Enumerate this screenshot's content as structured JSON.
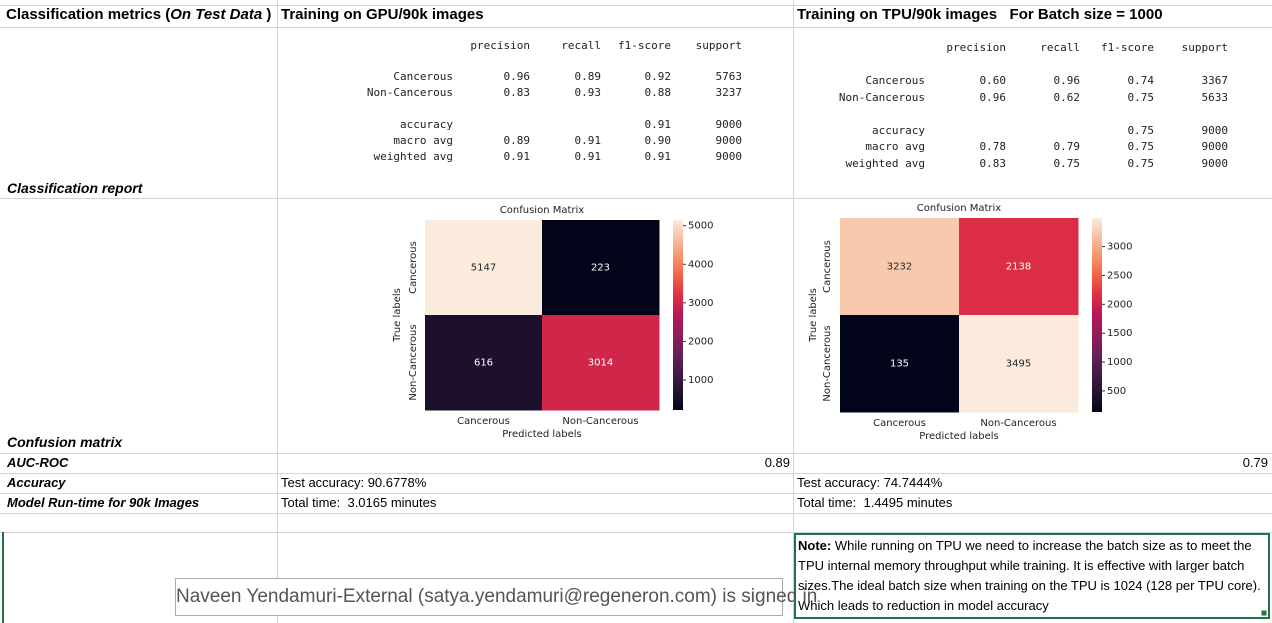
{
  "header": {
    "metrics_prefix": "Classification metrics (",
    "metrics_italic": "On Test Data",
    "metrics_suffix": " )",
    "gpu": "Training on GPU/90k images",
    "tpu": "Training on TPU/90k images   For Batch size = 1000"
  },
  "row_labels": {
    "report": "Classification report",
    "confusion": "Confusion matrix",
    "auc": "AUC-ROC",
    "accuracy": "Accuracy",
    "runtime": "Model Run-time for 90k Images"
  },
  "reports": [
    {
      "headers": [
        "precision",
        "recall",
        "f1-score",
        "support"
      ],
      "rows": [
        {
          "label": "Cancerous",
          "cells": [
            "0.96",
            "0.89",
            "0.92",
            "5763"
          ]
        },
        {
          "label": "Non-Cancerous",
          "cells": [
            "0.83",
            "0.93",
            "0.88",
            "3237"
          ]
        },
        {
          "label": "accuracy",
          "cells": [
            null,
            null,
            "0.91",
            "9000"
          ]
        },
        {
          "label": "macro avg",
          "cells": [
            "0.89",
            "0.91",
            "0.90",
            "9000"
          ]
        },
        {
          "label": "weighted avg",
          "cells": [
            "0.91",
            "0.91",
            "0.91",
            "9000"
          ]
        }
      ]
    },
    {
      "headers": [
        "precision",
        "recall",
        "f1-score",
        "support"
      ],
      "rows": [
        {
          "label": "Cancerous",
          "cells": [
            "0.60",
            "0.96",
            "0.74",
            "3367"
          ]
        },
        {
          "label": "Non-Cancerous",
          "cells": [
            "0.96",
            "0.62",
            "0.75",
            "5633"
          ]
        },
        {
          "label": "accuracy",
          "cells": [
            null,
            null,
            "0.75",
            "9000"
          ]
        },
        {
          "label": "macro avg",
          "cells": [
            "0.78",
            "0.79",
            "0.75",
            "9000"
          ]
        },
        {
          "label": "weighted avg",
          "cells": [
            "0.83",
            "0.75",
            "0.75",
            "9000"
          ]
        }
      ]
    }
  ],
  "confusion_matrices": [
    {
      "title": "Confusion Matrix",
      "xlabel": "Predicted labels",
      "ylabel": "True labels",
      "categories": [
        "Cancerous",
        "Non-Cancerous"
      ],
      "values": [
        [
          5147,
          223
        ],
        [
          616,
          3014
        ]
      ],
      "clim": [
        223,
        5147
      ],
      "colorbar_ticks": [
        1000,
        2000,
        3000,
        4000,
        5000
      ]
    },
    {
      "title": "Confusion Matrix",
      "xlabel": "Predicted labels",
      "ylabel": "True labels",
      "categories": [
        "Cancerous",
        "Non-Cancerous"
      ],
      "values": [
        [
          3232,
          2138
        ],
        [
          135,
          3495
        ]
      ],
      "clim": [
        135,
        3495
      ],
      "colorbar_ticks": [
        500,
        1000,
        1500,
        2000,
        2500,
        3000
      ]
    }
  ],
  "auc": [
    0.89,
    0.79
  ],
  "accuracy": [
    "Test accuracy: 90.6778%",
    "Test accuracy: 74.7444%"
  ],
  "runtime": [
    "Total time:  3.0165 minutes",
    "Total time:  1.4495 minutes"
  ],
  "note": {
    "label": "Note:",
    "text": " While running on TPU we need to increase the batch size as to meet the TPU internal memory throughput while training.  It is effective with larger batch sizes.The ideal batch size when training on the TPU is 1024 (128 per TPU core). Which leads to reduction in model accuracy"
  },
  "signin": "Naveen Yendamuri-External (satya.yendamuri@regeneron.com) is signed in"
}
